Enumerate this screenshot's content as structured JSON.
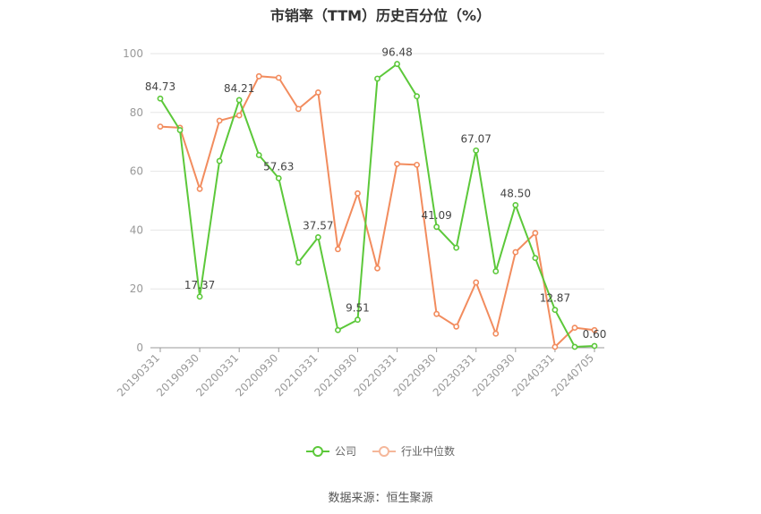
{
  "chart_data": {
    "type": "line",
    "title": "市销率（TTM）历史百分位（%）",
    "xlabel": "",
    "ylabel": "",
    "ylim": [
      0,
      100
    ],
    "yticks": [
      0,
      20,
      40,
      60,
      80,
      100
    ],
    "grid": true,
    "legend_position": "bottom",
    "x": [
      "20190331",
      "20190630",
      "20190930",
      "20191231",
      "20200331",
      "20200630",
      "20200930",
      "20201231",
      "20210331",
      "20210630",
      "20210930",
      "20211231",
      "20220331",
      "20220630",
      "20220930",
      "20221231",
      "20230331",
      "20230630",
      "20230930",
      "20231231",
      "20240331",
      "20240630",
      "20240705"
    ],
    "xtick_labels": [
      "20190331",
      "20190930",
      "20200331",
      "20200930",
      "20210331",
      "20210930",
      "20220331",
      "20220930",
      "20230331",
      "20230930",
      "20240331",
      "20240705"
    ],
    "series": [
      {
        "name": "公司",
        "color": "#5cc83a",
        "values": [
          84.73,
          74.0,
          17.37,
          63.5,
          84.21,
          65.5,
          57.63,
          29.0,
          37.57,
          6.0,
          9.51,
          91.5,
          96.48,
          85.5,
          41.09,
          34.0,
          67.07,
          26.0,
          48.5,
          30.5,
          12.87,
          0.3,
          0.6
        ],
        "labels": [
          "84.73",
          "",
          "17.37",
          "",
          "84.21",
          "",
          "57.63",
          "",
          "37.57",
          "",
          "9.51",
          "",
          "96.48",
          "",
          "41.09",
          "",
          "67.07",
          "",
          "48.50",
          "",
          "12.87",
          "",
          "0.60"
        ]
      },
      {
        "name": "行业中位数",
        "color": "#f28c5e",
        "values": [
          75.2,
          74.8,
          54.0,
          77.2,
          79.0,
          92.3,
          91.8,
          81.2,
          86.8,
          33.5,
          52.5,
          27.0,
          62.5,
          62.2,
          11.5,
          7.2,
          22.2,
          4.8,
          32.5,
          39.0,
          0.3,
          6.8,
          6.0
        ]
      }
    ]
  },
  "source_note": "数据来源：恒生聚源"
}
